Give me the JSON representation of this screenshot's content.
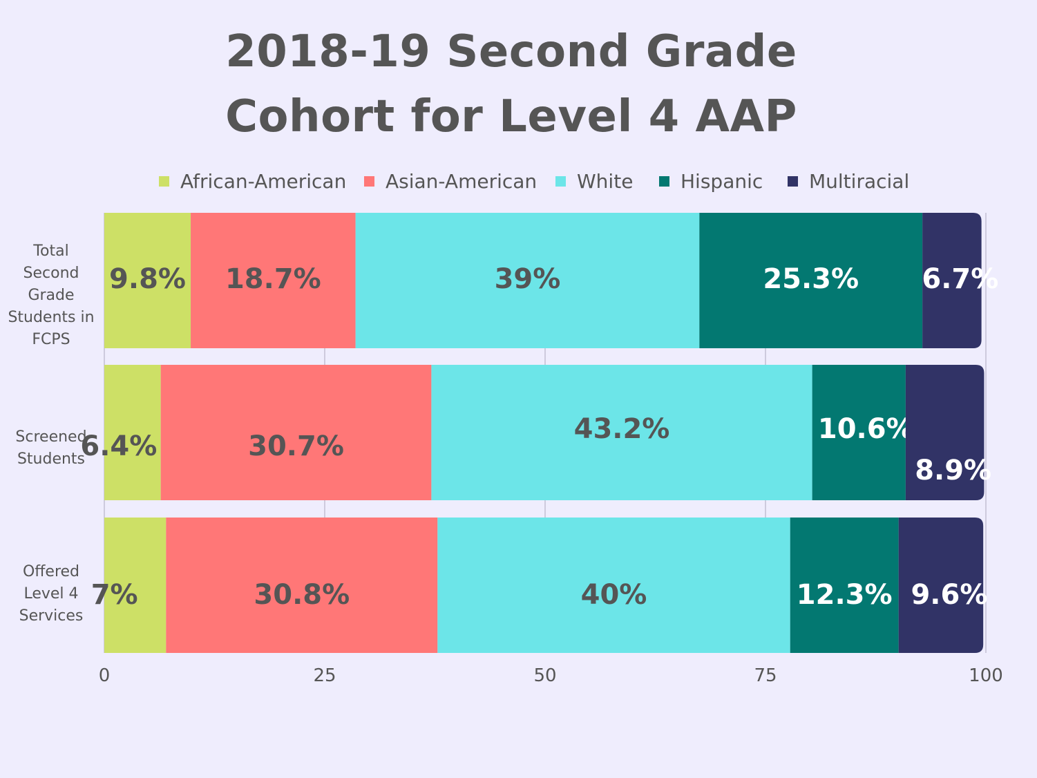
{
  "chart_data": {
    "type": "bar",
    "orientation": "horizontal",
    "stacked": true,
    "title_lines": [
      "2018-19 Second Grade",
      "Cohort for Level 4 AAP"
    ],
    "categories": [
      [
        "Total",
        "Second",
        "Grade",
        "Students in",
        "FCPS"
      ],
      [
        "Screened",
        "Students"
      ],
      [
        "Offered",
        "Level 4",
        "Services"
      ]
    ],
    "series": [
      {
        "name": "African-American",
        "color": "#cde066",
        "label_color": "#555555",
        "values": [
          9.8,
          6.4,
          7
        ],
        "labels": [
          "9.8%",
          "6.4%",
          "7%"
        ]
      },
      {
        "name": "Asian-American",
        "color": "#ff7777",
        "label_color": "#555555",
        "values": [
          18.7,
          30.7,
          30.8
        ],
        "labels": [
          "18.7%",
          "30.7%",
          "30.8%"
        ]
      },
      {
        "name": "White",
        "color": "#6ce5e8",
        "label_color": "#555555",
        "values": [
          39,
          43.2,
          40
        ],
        "labels": [
          "39%",
          "43.2%",
          "40%"
        ]
      },
      {
        "name": "Hispanic",
        "color": "#037871",
        "label_color": "#ffffff",
        "values": [
          25.3,
          10.6,
          12.3
        ],
        "labels": [
          "25.3%",
          "10.6%",
          "12.3%"
        ]
      },
      {
        "name": "Multiracial",
        "color": "#313366",
        "label_color": "#ffffff",
        "values": [
          6.7,
          8.9,
          9.6
        ],
        "labels": [
          "6.7%",
          "8.9%",
          "9.6%"
        ]
      }
    ],
    "xlim": [
      0,
      100
    ],
    "xticks": [
      "0",
      "25",
      "50",
      "75",
      "100"
    ],
    "grid": true,
    "legend_position": "top"
  }
}
